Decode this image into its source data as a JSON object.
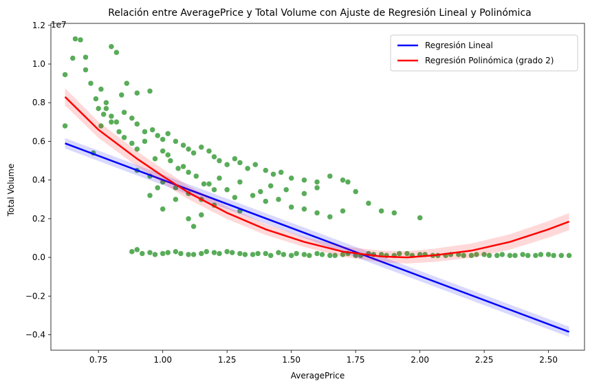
{
  "chart_data": {
    "type": "scatter",
    "title": "Relación entre AveragePrice y Total Volume con Ajuste de Regresión Lineal y Polinómica",
    "xlabel": "AveragePrice",
    "ylabel": "Total Volume",
    "y_offset_label": "1e7",
    "xlim": [
      0.565,
      2.64
    ],
    "ylim": [
      -4.8,
      12.1
    ],
    "y_scale_note": "values in units of 1e7 (shown as millions)",
    "x_ticks": [
      0.75,
      1.0,
      1.25,
      1.5,
      1.75,
      2.0,
      2.25,
      2.5
    ],
    "x_tick_labels": [
      "0.75",
      "1.00",
      "1.25",
      "1.50",
      "1.75",
      "2.00",
      "2.25",
      "2.50"
    ],
    "y_ticks": [
      -4,
      -2,
      0,
      2,
      4,
      6,
      8,
      10,
      12
    ],
    "y_tick_labels": [
      "−0.4",
      "−0.2",
      "0.0",
      "0.2",
      "0.4",
      "0.6",
      "0.8",
      "1.0",
      "1.2"
    ],
    "grid": false,
    "legend_position": "top-right",
    "colors": {
      "scatter": "#008000",
      "linear": "#0000ff",
      "poly": "#ff0000"
    },
    "series": [
      {
        "name": "Regresión Lineal",
        "kind": "line",
        "x": [
          0.62,
          2.58
        ],
        "y": [
          5.9,
          -3.85
        ]
      },
      {
        "name": "Regresión Polinómica (grado 2)",
        "kind": "line",
        "x": [
          0.62,
          0.75,
          0.9,
          1.0,
          1.1,
          1.25,
          1.4,
          1.55,
          1.7,
          1.85,
          1.95,
          2.05,
          2.2,
          2.35,
          2.5,
          2.58
        ],
        "y": [
          8.3,
          6.6,
          5.1,
          4.2,
          3.35,
          2.3,
          1.45,
          0.8,
          0.3,
          0.05,
          0.0,
          0.1,
          0.35,
          0.8,
          1.45,
          1.85
        ]
      }
    ],
    "scatter_points": {
      "x": [
        0.62,
        0.62,
        0.65,
        0.66,
        0.68,
        0.7,
        0.7,
        0.72,
        0.74,
        0.76,
        0.78,
        0.8,
        0.82,
        0.84,
        0.86,
        0.9,
        0.95,
        0.78,
        0.8,
        0.82,
        0.76,
        0.85,
        0.88,
        0.9,
        0.93,
        0.96,
        0.98,
        1.0,
        1.02,
        1.05,
        1.08,
        1.1,
        1.12,
        1.15,
        1.18,
        1.2,
        1.22,
        1.25,
        1.28,
        1.3,
        1.33,
        1.36,
        1.4,
        1.43,
        1.46,
        1.5,
        1.55,
        1.6,
        1.65,
        1.7,
        1.75,
        1.8,
        1.85,
        1.9,
        2.0,
        0.9,
        0.95,
        1.0,
        1.05,
        1.1,
        1.15,
        1.2,
        1.3,
        1.1,
        1.0,
        0.95,
        1.05,
        1.12,
        1.15,
        1.08,
        1.02,
        0.98,
        1.18,
        1.25,
        1.35,
        1.4,
        1.45,
        1.5,
        1.55,
        1.6,
        1.65,
        1.7,
        1.72,
        1.6,
        1.55,
        1.48,
        1.42,
        1.38,
        1.3,
        1.28,
        1.22,
        1.2,
        1.16,
        1.13,
        1.1,
        1.06,
        1.03,
        1.0,
        0.97,
        0.93,
        0.9,
        0.88,
        0.85,
        0.83,
        0.8,
        0.77,
        0.75,
        0.73,
        0.9,
        0.95,
        1.0,
        1.05,
        1.1,
        1.15,
        1.2,
        1.25,
        1.3,
        1.35,
        1.4,
        1.45,
        1.5,
        1.55,
        1.6,
        1.65,
        1.7,
        1.75,
        1.8,
        1.85,
        1.9,
        1.95,
        2.0,
        2.05,
        2.1,
        2.15,
        2.2,
        2.25,
        2.3,
        2.35,
        2.4,
        2.45,
        2.5,
        2.55,
        2.58,
        0.88,
        0.92,
        0.97,
        1.02,
        1.07,
        1.12,
        1.17,
        1.22,
        1.27,
        1.32,
        1.37,
        1.42,
        1.47,
        1.52,
        1.57,
        1.62,
        1.67,
        1.72,
        1.77,
        1.82,
        1.87,
        1.92,
        1.97,
        2.02,
        2.07,
        2.12,
        2.17,
        2.22,
        2.27,
        2.32,
        2.37,
        2.42,
        2.47,
        2.52
      ],
      "y": [
        9.45,
        6.8,
        10.3,
        11.3,
        11.25,
        9.7,
        10.35,
        9.0,
        8.2,
        8.7,
        8.0,
        10.9,
        10.6,
        8.4,
        9.0,
        8.5,
        8.6,
        7.7,
        7.3,
        7.0,
        6.8,
        7.5,
        7.2,
        6.9,
        6.5,
        6.6,
        6.3,
        6.1,
        6.4,
        6.0,
        5.8,
        5.6,
        5.4,
        5.7,
        5.5,
        5.2,
        5.0,
        4.8,
        5.1,
        4.9,
        4.6,
        4.8,
        4.5,
        4.3,
        4.4,
        4.1,
        4.0,
        3.9,
        4.2,
        4.0,
        3.4,
        2.8,
        2.4,
        2.3,
        2.05,
        4.5,
        4.2,
        3.9,
        3.6,
        3.3,
        3.0,
        2.7,
        2.4,
        2.0,
        2.5,
        3.2,
        3.0,
        1.6,
        2.2,
        4.7,
        5.3,
        3.6,
        3.8,
        3.5,
        3.2,
        2.9,
        3.0,
        2.6,
        2.5,
        2.3,
        2.1,
        2.4,
        3.9,
        3.6,
        3.3,
        3.5,
        3.7,
        3.4,
        3.9,
        3.1,
        4.1,
        3.5,
        3.8,
        4.2,
        4.4,
        4.6,
        5.0,
        5.5,
        5.1,
        6.0,
        5.6,
        5.9,
        6.2,
        6.5,
        7.0,
        7.4,
        7.7,
        5.4,
        0.4,
        0.25,
        0.2,
        0.3,
        0.15,
        0.2,
        0.25,
        0.3,
        0.2,
        0.15,
        0.2,
        0.25,
        0.1,
        0.15,
        0.2,
        0.1,
        0.15,
        0.1,
        0.2,
        0.15,
        0.1,
        0.2,
        0.15,
        0.1,
        0.1,
        0.15,
        0.1,
        0.15,
        0.1,
        0.1,
        0.15,
        0.1,
        0.15,
        0.1,
        0.1,
        0.3,
        0.2,
        0.15,
        0.25,
        0.2,
        0.15,
        0.3,
        0.2,
        0.25,
        0.15,
        0.2,
        0.1,
        0.15,
        0.2,
        0.1,
        0.15,
        0.1,
        0.2,
        0.1,
        0.15,
        0.1,
        0.2,
        0.1,
        0.15,
        0.1,
        0.15,
        0.1,
        0.15,
        0.1,
        0.15,
        0.1,
        0.1,
        0.15,
        0.1
      ]
    }
  }
}
